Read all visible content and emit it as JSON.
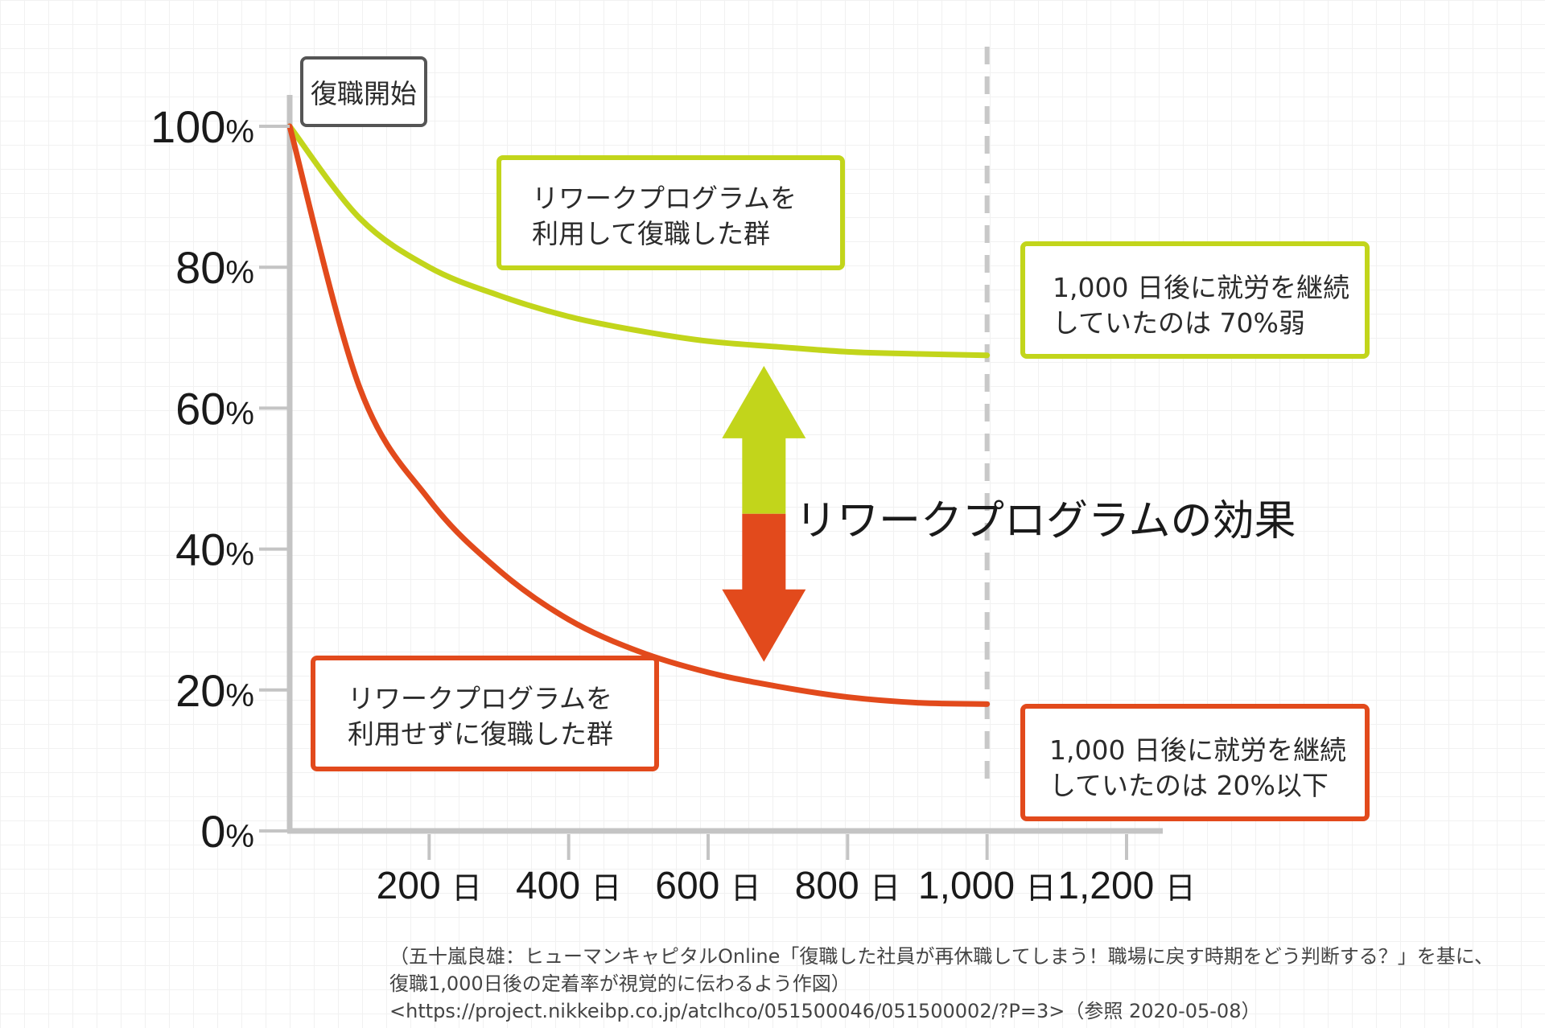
{
  "colors": {
    "with_program": "#c2d51b",
    "without_program": "#e24a1c",
    "axis": "#c4c4c4",
    "dashed_marker": "#c8c8c8"
  },
  "chart_data": {
    "type": "line",
    "x_unit": "日",
    "y_unit": "%",
    "xlim": [
      0,
      1300
    ],
    "ylim": [
      0,
      100
    ],
    "x_ticks": [
      {
        "value": 200,
        "label": "200",
        "unit": "日"
      },
      {
        "value": 400,
        "label": "400",
        "unit": "日"
      },
      {
        "value": 600,
        "label": "600",
        "unit": "日"
      },
      {
        "value": 800,
        "label": "800",
        "unit": "日"
      },
      {
        "value": 1000,
        "label": "1,000",
        "unit": "日"
      },
      {
        "value": 1200,
        "label": "1,200",
        "unit": "日"
      }
    ],
    "y_ticks": [
      {
        "value": 0,
        "label": "0",
        "unit": "%"
      },
      {
        "value": 20,
        "label": "20",
        "unit": "%"
      },
      {
        "value": 40,
        "label": "40",
        "unit": "%"
      },
      {
        "value": 60,
        "label": "60",
        "unit": "%"
      },
      {
        "value": 80,
        "label": "80",
        "unit": "%"
      },
      {
        "value": 100,
        "label": "100",
        "unit": "%"
      }
    ],
    "reference_line_x": 1000,
    "series": [
      {
        "key": "with_program",
        "color": "#c2d51b",
        "x": [
          0,
          100,
          200,
          300,
          400,
          500,
          600,
          700,
          800,
          900,
          1000
        ],
        "y": [
          100,
          87,
          80,
          76,
          73,
          71,
          69.5,
          68.7,
          68,
          67.7,
          67.5
        ]
      },
      {
        "key": "without_program",
        "color": "#e24a1c",
        "x": [
          0,
          100,
          200,
          300,
          400,
          500,
          600,
          700,
          800,
          900,
          1000
        ],
        "y": [
          100,
          63,
          47,
          37,
          30,
          25.5,
          22.5,
          20.5,
          19,
          18.2,
          18
        ]
      }
    ],
    "arrow": {
      "x": 680,
      "top_y": 66,
      "split_y": 45,
      "bottom_y": 24
    }
  },
  "start_label": "復職開始",
  "effect_label": "リワークプログラムの効果",
  "boxes": {
    "with_program": {
      "line1": "リワークプログラムを",
      "line2": "利用して復職した群"
    },
    "with_program_result": {
      "line1": "1,000 日後に就労を継続",
      "line2": "していたのは 70%弱"
    },
    "without_program": {
      "line1": "リワークプログラムを",
      "line2": "利用せずに復職した群"
    },
    "without_program_result": {
      "line1": "1,000 日後に就労を継続",
      "line2": "していたのは 20%以下"
    }
  },
  "source": {
    "line1": "（五十嵐良雄：ヒューマンキャピタルOnline「復職した社員が再休職してしまう！職場に戻す時期をどう判断する？」を基に、",
    "line2": "復職1,000日後の定着率が視覚的に伝わるよう作図）",
    "line3": "<https://project.nikkeibp.co.jp/atclhco/051500046/051500002/?P=3>（参照 2020-05-08）"
  }
}
